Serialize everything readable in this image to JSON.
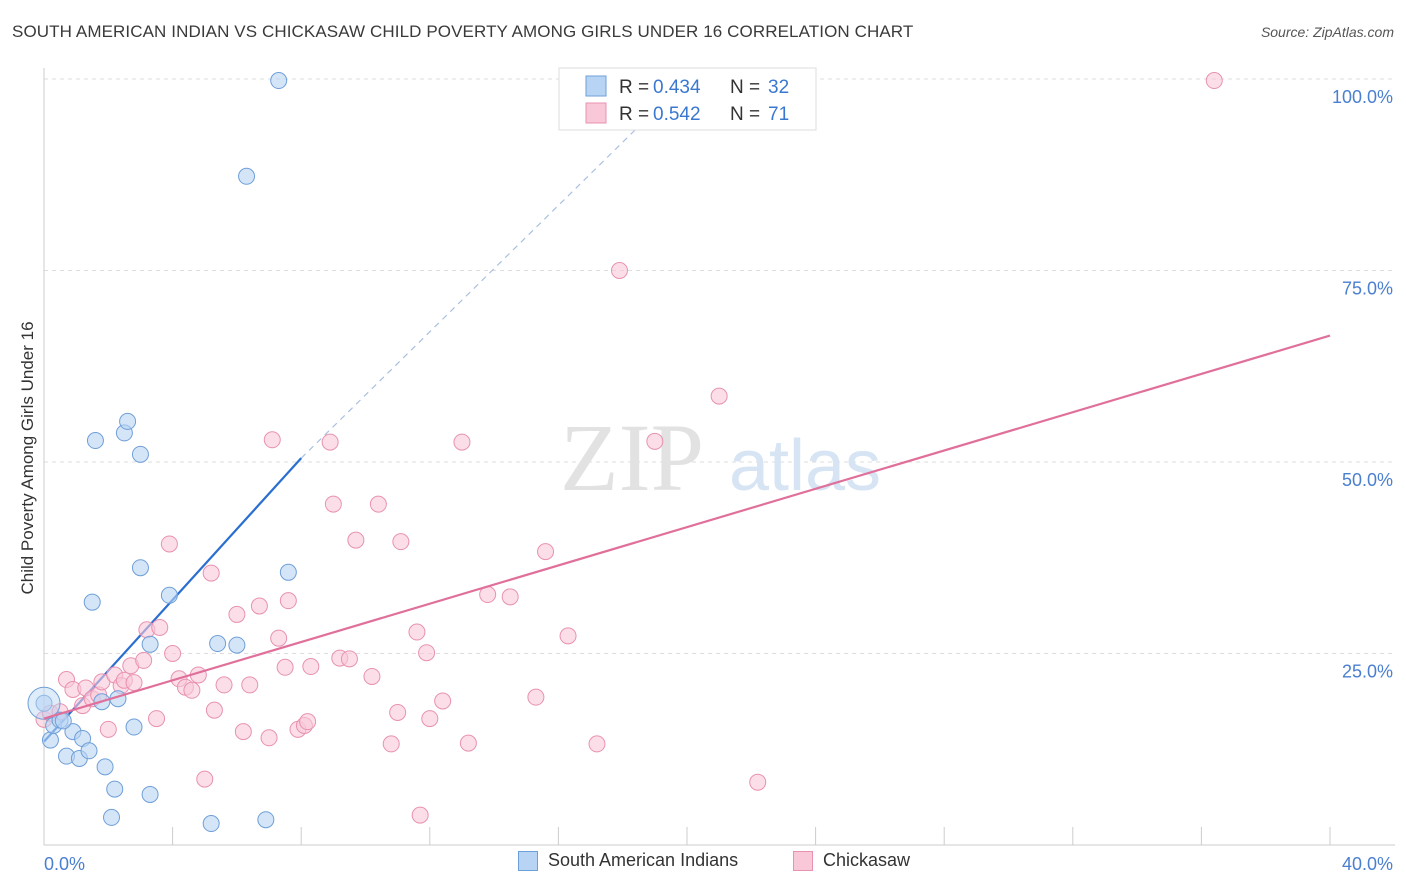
{
  "title": "SOUTH AMERICAN INDIAN VS CHICKASAW CHILD POVERTY AMONG GIRLS UNDER 16 CORRELATION CHART",
  "source": "Source: ZipAtlas.com",
  "colors": {
    "blue_fill": "#b8d4f4",
    "blue_stroke": "#6f9fd8",
    "blue_line": "#2a6fd0",
    "pink_fill": "#f8c8d8",
    "pink_stroke": "#e892b0",
    "pink_line": "#e0709a",
    "tick_label": "#4a7fd0",
    "grid": "#dddddd"
  },
  "watermark": {
    "zip": "ZIP",
    "atlas": "atlas"
  },
  "chart_data": {
    "type": "scatter",
    "title": "SOUTH AMERICAN INDIAN VS CHICKASAW CHILD POVERTY AMONG GIRLS UNDER 16 CORRELATION CHART",
    "xlabel": "",
    "ylabel": "Child Poverty Among Girls Under 16",
    "xlim": [
      0,
      40
    ],
    "ylim": [
      0,
      100
    ],
    "x_tick_labels": {
      "min": "0.0%",
      "max": "40.0%"
    },
    "y_ticks": [
      25,
      50,
      75,
      100
    ],
    "y_tick_labels": [
      "25.0%",
      "50.0%",
      "75.0%",
      "100.0%"
    ],
    "grid": true,
    "legend_stats": [
      {
        "r_label": "R =",
        "r_value": "0.434",
        "n_label": "N =",
        "n_value": "32"
      },
      {
        "r_label": "R =",
        "r_value": "0.542",
        "n_label": "N =",
        "n_value": "71"
      }
    ],
    "series": [
      {
        "name": "South American Indians",
        "trend": {
          "x": [
            0,
            8
          ],
          "y": [
            13.5,
            50.5
          ],
          "dashed_to": [
            20,
            100
          ]
        },
        "points": [
          [
            0,
            18.5
          ],
          [
            0.2,
            13.7
          ],
          [
            0.3,
            15.6
          ],
          [
            0.5,
            16.3
          ],
          [
            0.7,
            11.6
          ],
          [
            0.9,
            14.8
          ],
          [
            1.1,
            11.3
          ],
          [
            1.2,
            13.9
          ],
          [
            1.4,
            12.3
          ],
          [
            1.5,
            31.7
          ],
          [
            1.6,
            52.8
          ],
          [
            1.8,
            18.7
          ],
          [
            1.9,
            10.2
          ],
          [
            2.2,
            7.3
          ],
          [
            2.3,
            19.1
          ],
          [
            2.5,
            53.8
          ],
          [
            2.6,
            55.3
          ],
          [
            2.8,
            15.4
          ],
          [
            3.0,
            51.0
          ],
          [
            3.0,
            36.2
          ],
          [
            3.3,
            6.6
          ],
          [
            3.3,
            26.2
          ],
          [
            3.9,
            32.6
          ],
          [
            5.2,
            2.8
          ],
          [
            5.4,
            26.3
          ],
          [
            6.0,
            26.1
          ],
          [
            6.3,
            87.3
          ],
          [
            6.9,
            3.3
          ],
          [
            7.3,
            99.8
          ],
          [
            7.6,
            35.6
          ],
          [
            2.1,
            3.6
          ],
          [
            0.6,
            16.2
          ]
        ]
      },
      {
        "name": "Chickasaw",
        "trend": {
          "x": [
            0,
            40
          ],
          "y": [
            16.5,
            66.5
          ]
        },
        "points": [
          [
            0,
            16.4
          ],
          [
            0.2,
            17.2
          ],
          [
            0.5,
            17.4
          ],
          [
            0.7,
            21.6
          ],
          [
            0.9,
            20.3
          ],
          [
            1.2,
            18.2
          ],
          [
            1.3,
            20.5
          ],
          [
            1.5,
            19.1
          ],
          [
            1.7,
            19.6
          ],
          [
            1.8,
            21.3
          ],
          [
            2.0,
            15.1
          ],
          [
            2.2,
            22.2
          ],
          [
            2.4,
            20.8
          ],
          [
            2.5,
            21.5
          ],
          [
            2.7,
            23.4
          ],
          [
            2.8,
            21.2
          ],
          [
            3.1,
            24.1
          ],
          [
            3.2,
            28.1
          ],
          [
            3.5,
            16.5
          ],
          [
            3.6,
            28.4
          ],
          [
            3.9,
            39.3
          ],
          [
            4.0,
            25.0
          ],
          [
            4.2,
            21.7
          ],
          [
            4.4,
            20.6
          ],
          [
            4.6,
            20.2
          ],
          [
            4.8,
            22.2
          ],
          [
            5.0,
            8.6
          ],
          [
            5.2,
            35.5
          ],
          [
            5.3,
            17.6
          ],
          [
            5.6,
            20.9
          ],
          [
            6.0,
            30.1
          ],
          [
            6.2,
            14.8
          ],
          [
            6.4,
            20.9
          ],
          [
            6.7,
            31.2
          ],
          [
            7.0,
            14.0
          ],
          [
            7.1,
            52.9
          ],
          [
            7.3,
            27.0
          ],
          [
            7.5,
            23.2
          ],
          [
            7.6,
            31.9
          ],
          [
            7.9,
            15.1
          ],
          [
            8.1,
            15.6
          ],
          [
            8.2,
            16.1
          ],
          [
            8.3,
            23.3
          ],
          [
            8.9,
            52.6
          ],
          [
            9.0,
            44.5
          ],
          [
            9.2,
            24.4
          ],
          [
            9.5,
            24.3
          ],
          [
            9.7,
            39.8
          ],
          [
            10.2,
            22.0
          ],
          [
            10.4,
            44.5
          ],
          [
            10.8,
            13.2
          ],
          [
            11.0,
            17.3
          ],
          [
            11.1,
            39.6
          ],
          [
            11.6,
            27.8
          ],
          [
            11.7,
            3.9
          ],
          [
            11.9,
            25.1
          ],
          [
            12.0,
            16.5
          ],
          [
            12.4,
            18.8
          ],
          [
            13.0,
            52.6
          ],
          [
            13.2,
            13.3
          ],
          [
            13.8,
            32.7
          ],
          [
            14.5,
            32.4
          ],
          [
            15.3,
            19.3
          ],
          [
            15.6,
            38.3
          ],
          [
            16.3,
            27.3
          ],
          [
            17.2,
            13.2
          ],
          [
            17.9,
            75.0
          ],
          [
            19.0,
            52.7
          ],
          [
            21.0,
            58.6
          ],
          [
            22.2,
            8.2
          ],
          [
            36.4,
            99.8
          ]
        ]
      }
    ]
  }
}
